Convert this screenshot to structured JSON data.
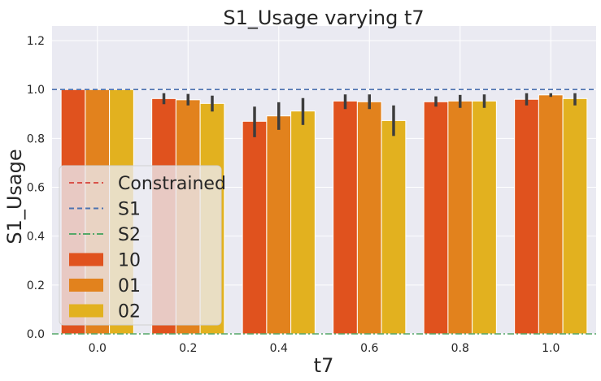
{
  "chart_data": {
    "type": "bar",
    "title": "S1_Usage varying t7",
    "xlabel": "t7",
    "ylabel": "S1_Usage",
    "ylim": [
      0,
      1.26
    ],
    "y_ticks": [
      "0.0",
      "0.2",
      "0.4",
      "0.6",
      "0.8",
      "1.0",
      "1.2"
    ],
    "categories": [
      "0.0",
      "0.2",
      "0.4",
      "0.6",
      "0.8",
      "1.0"
    ],
    "grid": true,
    "legend_position": "lower-left",
    "series": [
      {
        "name": "10",
        "color": "#e0521e",
        "values": [
          1.0,
          0.963,
          0.87,
          0.953,
          0.95,
          0.96
        ],
        "err_low": [
          1.0,
          0.94,
          0.805,
          0.92,
          0.93,
          0.935
        ],
        "err_high": [
          1.0,
          0.985,
          0.93,
          0.98,
          0.972,
          0.985
        ]
      },
      {
        "name": "01",
        "color": "#e2821d",
        "values": [
          1.0,
          0.958,
          0.892,
          0.95,
          0.953,
          0.978
        ],
        "err_low": [
          1.0,
          0.935,
          0.835,
          0.92,
          0.925,
          0.97
        ],
        "err_high": [
          1.0,
          0.982,
          0.948,
          0.98,
          0.978,
          0.985
        ]
      },
      {
        "name": "02",
        "color": "#e2b11f",
        "values": [
          1.0,
          0.943,
          0.912,
          0.873,
          0.953,
          0.963
        ],
        "err_low": [
          1.0,
          0.91,
          0.855,
          0.81,
          0.925,
          0.935
        ],
        "err_high": [
          1.0,
          0.975,
          0.965,
          0.935,
          0.98,
          0.985
        ]
      }
    ],
    "reference_lines": [
      {
        "name": "Constrained",
        "color": "#d9524a",
        "style": "dashed"
      },
      {
        "name": "S1",
        "color": "#4c72b0",
        "style": "dashed",
        "value": 1.0
      },
      {
        "name": "S2",
        "color": "#55a868",
        "style": "dashdot",
        "value": 0.0
      }
    ],
    "legend_entries": [
      "Constrained",
      "S1",
      "S2",
      "10",
      "01",
      "02"
    ]
  }
}
